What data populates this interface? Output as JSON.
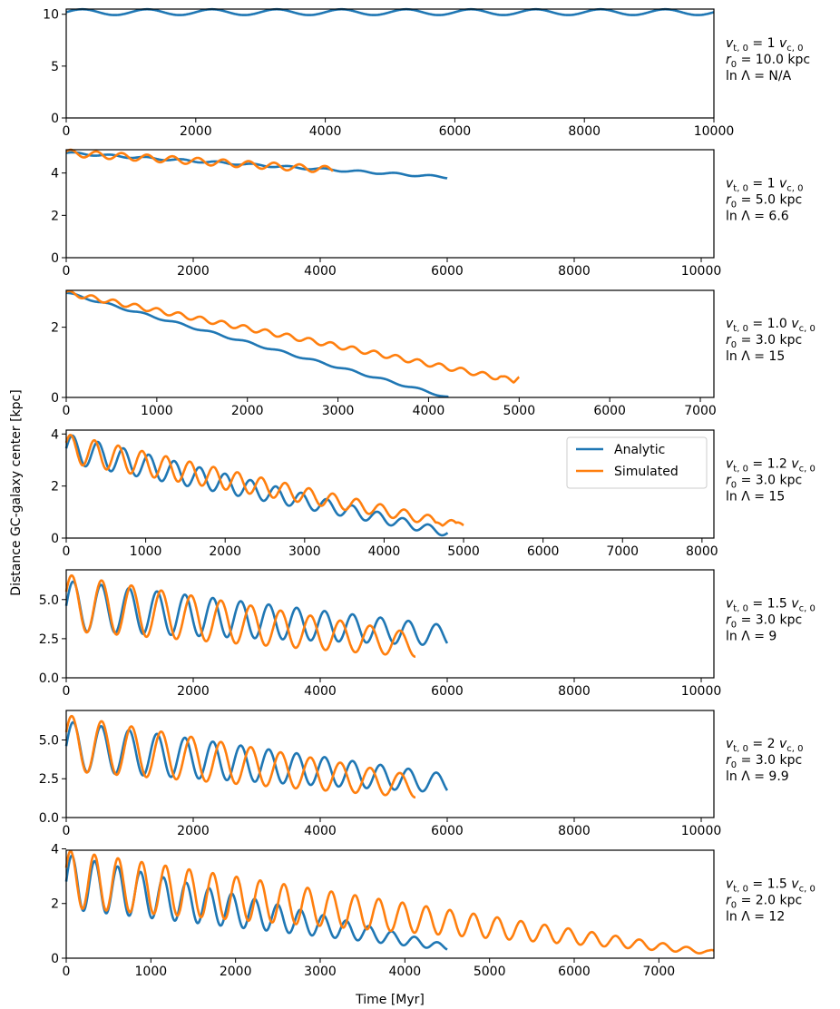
{
  "figure": {
    "ylabel": "Distance GC-galaxy center [kpc]",
    "xlabel": "Time [Myr]",
    "legend": {
      "placement": "panel-4 upper-right",
      "entries": [
        {
          "name": "Analytic",
          "color": "#1f77b4"
        },
        {
          "name": "Simulated",
          "color": "#ff7f0e"
        }
      ]
    }
  },
  "chart_data": [
    {
      "type": "line",
      "xlim": [
        0,
        10000
      ],
      "ylim": [
        0,
        10.5
      ],
      "xticks": [
        0,
        2000,
        4000,
        6000,
        8000,
        10000
      ],
      "yticks": [
        "0",
        "5",
        "10"
      ],
      "annotation": {
        "line1": "v",
        "line1_sub": "t, 0",
        "line1_mid": " = 1 ",
        "line1_v2": "v",
        "line1_sub2": "c, 0",
        "line2": "r",
        "line2_sub": "0",
        "line2_rest": " = 10.0 kpc",
        "line3": "ln Λ =  N/A"
      },
      "series": [
        {
          "name": "Analytic",
          "color": "#1f77b4",
          "t_end": 10000,
          "start": 10.0,
          "end": 10.0,
          "amp": 0.28,
          "period": 1000,
          "bias": 0.2
        }
      ]
    },
    {
      "type": "line",
      "xlim": [
        0,
        10200
      ],
      "ylim": [
        0,
        5.1
      ],
      "xticks": [
        0,
        2000,
        4000,
        6000,
        8000,
        10000
      ],
      "yticks": [
        "0",
        "2",
        "4"
      ],
      "annotation": {
        "line1": "v",
        "line1_sub": "t, 0",
        "line1_mid": " = 1 ",
        "line1_v2": "v",
        "line1_sub2": "c, 0",
        "line2": "r",
        "line2_sub": "0",
        "line2_rest": " = 5.0 kpc",
        "line3": "ln Λ = 6.6"
      },
      "series": [
        {
          "name": "Analytic",
          "color": "#1f77b4",
          "t_end": 6000,
          "start": 4.95,
          "end": 3.8,
          "amp": 0.05,
          "period": 560,
          "bias": 0
        },
        {
          "name": "Simulated",
          "color": "#ff7f0e",
          "t_end": 4200,
          "start": 4.95,
          "end": 4.15,
          "amp": 0.16,
          "period": 400,
          "bias": 0
        }
      ]
    },
    {
      "type": "line",
      "xlim": [
        0,
        7150
      ],
      "ylim": [
        0,
        3.05
      ],
      "xticks": [
        0,
        1000,
        2000,
        3000,
        4000,
        5000,
        6000,
        7000
      ],
      "yticks": [
        "0",
        "2"
      ],
      "annotation": {
        "line1": "v",
        "line1_sub": "t, 0",
        "line1_mid": " = 1.0 ",
        "line1_v2": "v",
        "line1_sub2": "c, 0",
        "line2": "r",
        "line2_sub": "0",
        "line2_rest": " = 3.0 kpc",
        "line3": "ln Λ = 15"
      },
      "series": [
        {
          "name": "Analytic",
          "color": "#1f77b4",
          "t_end": 4220,
          "start": 2.98,
          "end": 0.0,
          "amp": 0.03,
          "period": 380,
          "bias": 0
        },
        {
          "name": "Simulated",
          "color": "#ff7f0e",
          "t_end": 5000,
          "start": 2.98,
          "end": 0.45,
          "amp": 0.07,
          "period": 240,
          "bias": 0,
          "floor": 0.5,
          "floor_at": 3750
        }
      ]
    },
    {
      "type": "line",
      "xlim": [
        0,
        8150
      ],
      "ylim": [
        0,
        4.15
      ],
      "xticks": [
        0,
        1000,
        2000,
        3000,
        4000,
        5000,
        6000,
        7000,
        8000
      ],
      "yticks": [
        "0",
        "2",
        "4"
      ],
      "annotation": {
        "line1": "v",
        "line1_sub": "t, 0",
        "line1_mid": " = 1.2 ",
        "line1_v2": "v",
        "line1_sub2": "c, 0",
        "line2": "r",
        "line2_sub": "0",
        "line2_rest": " = 3.0 kpc",
        "line3": "ln Λ = 15"
      },
      "series": [
        {
          "name": "Analytic",
          "color": "#1f77b4",
          "t_end": 4800,
          "start": 3.45,
          "end": 0.2,
          "amp": 0.55,
          "period": 320,
          "bias": 0,
          "damp": true
        },
        {
          "name": "Simulated",
          "color": "#ff7f0e",
          "t_end": 5000,
          "start": 3.45,
          "end": 0.45,
          "amp": 0.55,
          "period": 300,
          "bias": 0,
          "damp": true,
          "floor": 0.5,
          "floor_at": 4300
        }
      ]
    },
    {
      "type": "line",
      "xlim": [
        0,
        10200
      ],
      "ylim": [
        0,
        6.9
      ],
      "xticks": [
        0,
        2000,
        4000,
        6000,
        8000,
        10000
      ],
      "yticks": [
        "0.0",
        "2.5",
        "5.0"
      ],
      "annotation": {
        "line1": "v",
        "line1_sub": "t, 0",
        "line1_mid": " = 1.5 ",
        "line1_v2": "v",
        "line1_sub2": "c, 0",
        "line2": "r",
        "line2_sub": "0",
        "line2_rest": " = 3.0 kpc",
        "line3": "ln Λ = 9"
      },
      "series": [
        {
          "name": "Analytic",
          "color": "#1f77b4",
          "t_end": 6000,
          "start": 4.6,
          "end": 2.7,
          "amp": 1.6,
          "period": 440,
          "bias": 0,
          "ampEnd": 0.65
        },
        {
          "name": "Simulated",
          "color": "#ff7f0e",
          "t_end": 5500,
          "start": 4.8,
          "end": 2.1,
          "amp": 1.8,
          "period": 470,
          "bias": 0,
          "ampEnd": 0.75
        }
      ]
    },
    {
      "type": "line",
      "xlim": [
        0,
        10200
      ],
      "ylim": [
        0,
        6.9
      ],
      "xticks": [
        0,
        2000,
        4000,
        6000,
        8000,
        10000
      ],
      "yticks": [
        "0.0",
        "2.5",
        "5.0"
      ],
      "annotation": {
        "line1": "v",
        "line1_sub": "t, 0",
        "line1_mid": " = 2 ",
        "line1_v2": "v",
        "line1_sub2": "c, 0",
        "line2": "r",
        "line2_sub": "0",
        "line2_rest": " = 3.0 kpc",
        "line3": "ln Λ = 9.9"
      },
      "series": [
        {
          "name": "Analytic",
          "color": "#1f77b4",
          "t_end": 6000,
          "start": 4.6,
          "end": 2.2,
          "amp": 1.6,
          "period": 440,
          "bias": 0,
          "ampEnd": 0.6
        },
        {
          "name": "Simulated",
          "color": "#ff7f0e",
          "t_end": 5500,
          "start": 4.8,
          "end": 2.0,
          "amp": 1.8,
          "period": 470,
          "bias": 0,
          "ampEnd": 0.7
        }
      ]
    },
    {
      "type": "line",
      "xlim": [
        0,
        7650
      ],
      "ylim": [
        0,
        3.95
      ],
      "xticks": [
        0,
        1000,
        2000,
        3000,
        4000,
        5000,
        6000,
        7000
      ],
      "yticks": [
        "0",
        "2",
        "4"
      ],
      "annotation": {
        "line1": "v",
        "line1_sub": "t, 0",
        "line1_mid": " = 1.5 ",
        "line1_v2": "v",
        "line1_sub2": "c, 0",
        "line2": "r",
        "line2_sub": "0",
        "line2_rest": " = 2.0 kpc",
        "line3": "ln Λ = 12"
      },
      "series": [
        {
          "name": "Analytic",
          "color": "#1f77b4",
          "t_end": 4500,
          "start": 2.8,
          "end": 0.4,
          "amp": 1.0,
          "period": 270,
          "bias": 0,
          "ampEnd": 0.1
        },
        {
          "name": "Simulated",
          "color": "#ff7f0e",
          "t_end": 7650,
          "start": 2.9,
          "end": 0.2,
          "amp": 1.05,
          "period": 280,
          "bias": 0,
          "ampEnd": 0.06,
          "floor": 0.2,
          "floor_at": 4200
        }
      ]
    }
  ]
}
